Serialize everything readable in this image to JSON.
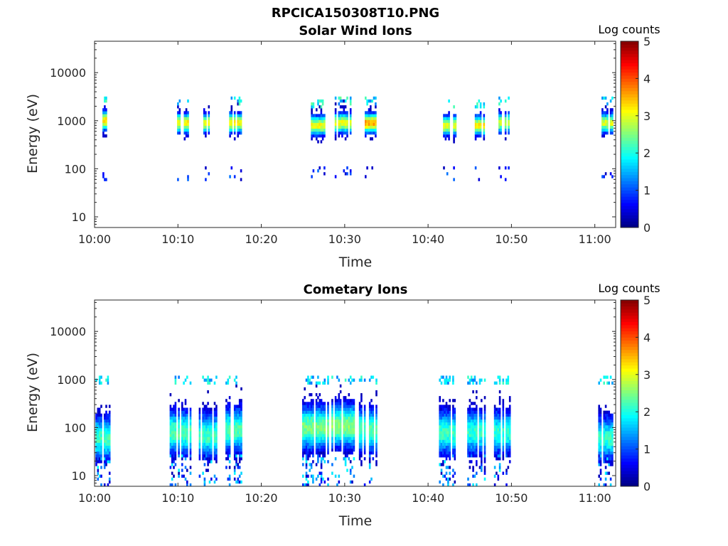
{
  "figure": {
    "title": "RPCICA150308T10.PNG"
  },
  "chart_data": [
    {
      "type": "heatmap",
      "title": "Solar Wind Ions",
      "xlabel": "Time",
      "ylabel": "Energy (eV)",
      "x_ticks": [
        "10:00",
        "10:10",
        "10:20",
        "10:30",
        "10:40",
        "10:50",
        "11:00"
      ],
      "y_ticks": [
        "10",
        "100",
        "1000",
        "10000"
      ],
      "y_scale": "log",
      "ylim": [
        6,
        45000
      ],
      "xlim_minutes": [
        0,
        62.5
      ],
      "colorbar": {
        "label": "Log counts",
        "range": [
          0,
          5
        ],
        "ticks": [
          "0",
          "1",
          "2",
          "3",
          "4",
          "5"
        ],
        "colormap": "jet"
      },
      "bursts": [
        {
          "t": 1.2,
          "width": 0.5,
          "peak_energy": 1000,
          "peak_log_counts": 3.3,
          "high_energy": true,
          "low_energy": true
        },
        {
          "t": 10.5,
          "width": 1.6,
          "peak_energy": 900,
          "peak_log_counts": 3.2,
          "high_energy": true,
          "low_energy": true
        },
        {
          "t": 13.6,
          "width": 1.5,
          "peak_energy": 900,
          "peak_log_counts": 3.0,
          "high_energy": true,
          "low_energy": true
        },
        {
          "t": 16.8,
          "width": 1.7,
          "peak_energy": 900,
          "peak_log_counts": 3.2,
          "high_energy": true,
          "low_energy": true
        },
        {
          "t": 26.8,
          "width": 1.7,
          "peak_energy": 800,
          "peak_log_counts": 3.1,
          "high_energy": true,
          "low_energy": true
        },
        {
          "t": 29.8,
          "width": 2.0,
          "peak_energy": 900,
          "peak_log_counts": 3.1,
          "high_energy": true,
          "low_energy": true
        },
        {
          "t": 33.0,
          "width": 1.6,
          "peak_energy": 900,
          "peak_log_counts": 3.6,
          "high_energy": true,
          "low_energy": true
        },
        {
          "t": 42.6,
          "width": 1.6,
          "peak_energy": 800,
          "peak_log_counts": 3.1,
          "high_energy": true,
          "low_energy": true
        },
        {
          "t": 46.0,
          "width": 1.6,
          "peak_energy": 800,
          "peak_log_counts": 3.2,
          "high_energy": true,
          "low_energy": true
        },
        {
          "t": 49.0,
          "width": 1.5,
          "peak_energy": 900,
          "peak_log_counts": 2.9,
          "high_energy": true,
          "low_energy": true
        },
        {
          "t": 61.5,
          "width": 1.4,
          "peak_energy": 900,
          "peak_log_counts": 3.0,
          "high_energy": true,
          "low_energy": true
        }
      ]
    },
    {
      "type": "heatmap",
      "title": "Cometary Ions",
      "xlabel": "Time",
      "ylabel": "Energy (eV)",
      "x_ticks": [
        "10:00",
        "10:10",
        "10:20",
        "10:30",
        "10:40",
        "10:50",
        "11:00"
      ],
      "y_ticks": [
        "10",
        "100",
        "1000",
        "10000"
      ],
      "y_scale": "log",
      "ylim": [
        6,
        45000
      ],
      "xlim_minutes": [
        0,
        62.5
      ],
      "colorbar": {
        "label": "Log counts",
        "range": [
          0,
          5
        ],
        "ticks": [
          "0",
          "1",
          "2",
          "3",
          "4",
          "5"
        ],
        "colormap": "jet"
      },
      "bursts": [
        {
          "t": 1.0,
          "width": 1.8,
          "peak_energy": 60,
          "peak_log_counts": 2.2,
          "high_energy": true,
          "low_energy": true
        },
        {
          "t": 10.3,
          "width": 2.6,
          "peak_energy": 80,
          "peak_log_counts": 2.3,
          "high_energy": true,
          "low_energy": true
        },
        {
          "t": 13.6,
          "width": 2.2,
          "peak_energy": 70,
          "peak_log_counts": 2.2,
          "high_energy": true,
          "low_energy": true
        },
        {
          "t": 16.8,
          "width": 2.2,
          "peak_energy": 90,
          "peak_log_counts": 2.3,
          "high_energy": true,
          "low_energy": true
        },
        {
          "t": 26.5,
          "width": 3.2,
          "peak_energy": 100,
          "peak_log_counts": 2.5,
          "high_energy": true,
          "low_energy": true
        },
        {
          "t": 29.8,
          "width": 2.8,
          "peak_energy": 110,
          "peak_log_counts": 2.6,
          "high_energy": true,
          "low_energy": true
        },
        {
          "t": 32.8,
          "width": 2.2,
          "peak_energy": 90,
          "peak_log_counts": 2.3,
          "high_energy": true,
          "low_energy": true
        },
        {
          "t": 42.5,
          "width": 2.4,
          "peak_energy": 80,
          "peak_log_counts": 2.2,
          "high_energy": true,
          "low_energy": true
        },
        {
          "t": 45.8,
          "width": 2.2,
          "peak_energy": 80,
          "peak_log_counts": 2.1,
          "high_energy": true,
          "low_energy": true
        },
        {
          "t": 48.9,
          "width": 2.0,
          "peak_energy": 80,
          "peak_log_counts": 2.1,
          "high_energy": true,
          "low_energy": true
        },
        {
          "t": 61.3,
          "width": 1.8,
          "peak_energy": 60,
          "peak_log_counts": 2.1,
          "high_energy": true,
          "low_energy": true
        }
      ]
    }
  ]
}
